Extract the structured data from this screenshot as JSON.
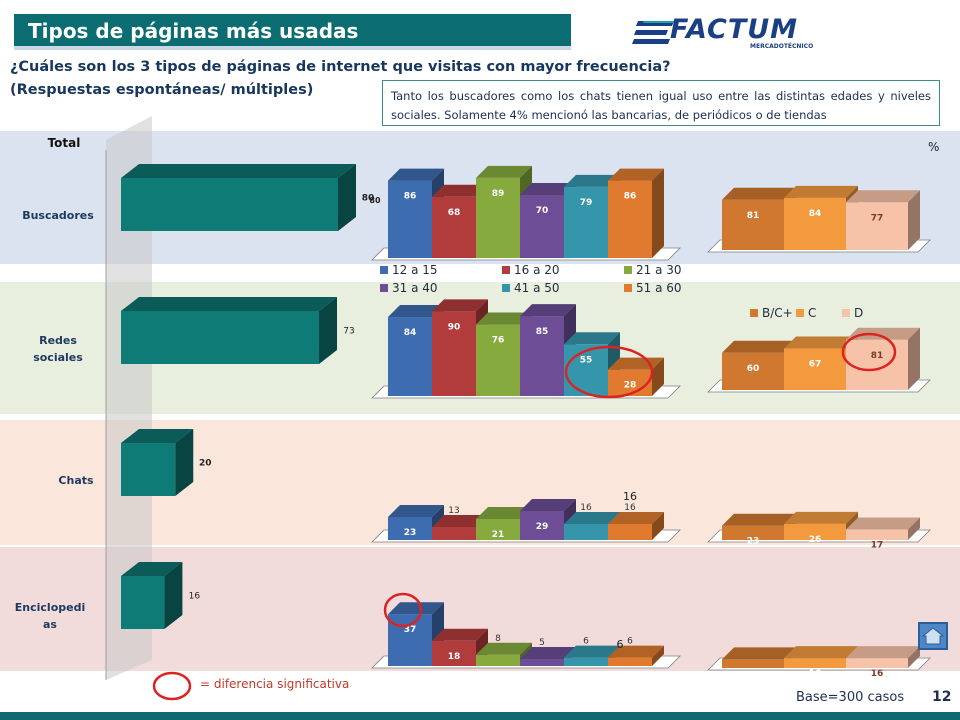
{
  "slide": {
    "title": "Tipos de páginas más usadas",
    "logo_text": "FACTUM",
    "logo_sub": "MERCADOTÉCNICO",
    "question_line1": "¿Cuáles son los 3 tipos de páginas de internet que visitas con mayor frecuencia?",
    "question_line2": "(Respuestas espontáneas/ múltiples)",
    "note": "Tanto los buscadores como los chats tienen igual uso entre las distintas edades y niveles sociales. Solamente 4% mencionó las bancarias, de periódicos o de tiendas",
    "total_label": "Total",
    "percent_label": "%",
    "significance_label": "= diferencia significativa",
    "base_label": "Base=300 casos",
    "page_number": "12",
    "row_labels": [
      "Buscadores",
      "Redes sociales",
      "Chats",
      "Enciclopedi as"
    ]
  },
  "colors": {
    "title_bg": "#0b6d72",
    "total_bar": "#0f7b76",
    "age": [
      "#3d6db0",
      "#b23c3b",
      "#86aa3e",
      "#6c4d96",
      "#3596ab",
      "#e07a2f"
    ],
    "nse": [
      "#d0782f",
      "#f39a3e",
      "#f7c3a8"
    ],
    "band": [
      "#dbe3f0",
      "#e8efdf",
      "#fbe6dc",
      "#f2dcdb"
    ]
  },
  "chart_data": [
    {
      "type": "bar",
      "title": "Total",
      "categories": [
        "Buscadores",
        "Redes sociales",
        "Chats",
        "Enciclopedias"
      ],
      "values": [
        80,
        73,
        20,
        16
      ],
      "xlim": [
        0,
        100
      ]
    },
    {
      "type": "bar",
      "categories": [
        "Buscadores",
        "Redes sociales",
        "Chats",
        "Enciclopedias"
      ],
      "series": [
        {
          "name": "12 a 15",
          "values": [
            86,
            84,
            23,
            37
          ]
        },
        {
          "name": "16 a 20",
          "values": [
            68,
            90,
            13,
            18
          ]
        },
        {
          "name": "21 a 30",
          "values": [
            89,
            76,
            21,
            8
          ]
        },
        {
          "name": "31 a 40",
          "values": [
            70,
            85,
            29,
            5
          ]
        },
        {
          "name": "41 a 50",
          "values": [
            79,
            55,
            16,
            6
          ]
        },
        {
          "name": "51 a 60",
          "values": [
            86,
            28,
            16,
            6
          ]
        }
      ],
      "ylim": [
        0,
        100
      ]
    },
    {
      "type": "bar",
      "categories": [
        "Buscadores",
        "Redes sociales",
        "Chats",
        "Enciclopedias"
      ],
      "series": [
        {
          "name": "B/C+",
          "values": [
            81,
            60,
            23,
            14
          ]
        },
        {
          "name": "C",
          "values": [
            84,
            67,
            26,
            16
          ]
        },
        {
          "name": "D",
          "values": [
            77,
            81,
            17,
            16
          ]
        }
      ],
      "ylim": [
        0,
        100
      ]
    }
  ]
}
